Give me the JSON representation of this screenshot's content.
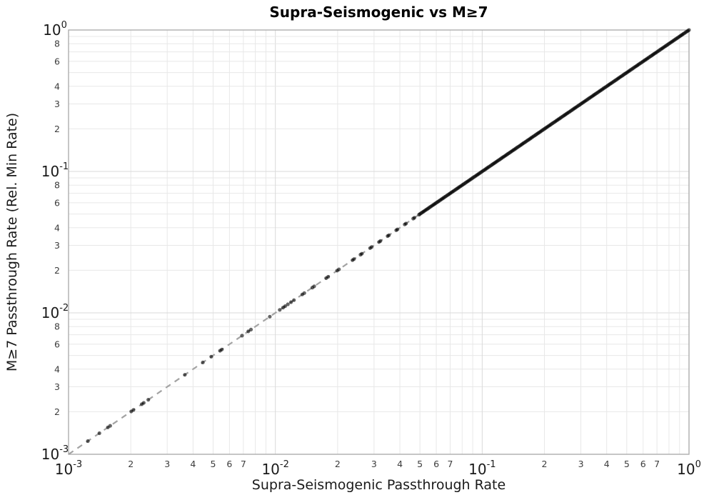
{
  "chart_data": {
    "type": "scatter",
    "title": "Supra-Seismogenic vs M≥7",
    "xlabel": "Supra-Seismogenic Passthrough Rate",
    "ylabel": "M≥7 Passthrough Rate (Rel. Min Rate)",
    "xscale": "log",
    "yscale": "log",
    "xlim": [
      0.001,
      1.0
    ],
    "ylim": [
      0.001,
      1.0
    ],
    "grid": true,
    "legend": "none",
    "x_decade_exponents": [
      -3,
      -2,
      -1,
      0
    ],
    "y_decade_exponents": [
      0,
      -1,
      -2,
      -3
    ],
    "x_minor_labeled_digits": [
      2,
      3,
      4,
      5,
      6,
      7
    ],
    "y_minor_labeled_digits": [
      8,
      6,
      4,
      3,
      2
    ],
    "relation": "all points lie on the identity line y = x",
    "reference_line": {
      "type": "y=x",
      "from": 0.001,
      "to": 1.0,
      "style": "dashed",
      "color": "#a3a3a3"
    },
    "marker": {
      "shape": "circle",
      "color": "#000000",
      "opacity": 0.6,
      "radius_px": 2.6
    },
    "points_sparse_x": [
      0.00124,
      0.00141,
      0.00155,
      0.00159,
      0.00201,
      0.00206,
      0.00226,
      0.00231,
      0.00243,
      0.00365,
      0.00446,
      0.0049,
      0.0054,
      0.00551,
      0.0069,
      0.0074,
      0.00762,
      0.0094,
      0.0105,
      0.0109,
      0.01115,
      0.0115,
      0.0119,
      0.0123,
      0.0135,
      0.0138,
      0.0151,
      0.0154,
      0.0176,
      0.018,
      0.0199,
      0.0203,
      0.0236,
      0.024,
      0.0258,
      0.0262,
      0.0287,
      0.0292,
      0.0317,
      0.0322,
      0.0349,
      0.0354,
      0.0384,
      0.0389,
      0.0422,
      0.0428,
      0.0464,
      0.047,
      0.0495
    ],
    "points_dense_x": {
      "from": 0.05,
      "to": 1.0,
      "count": 240,
      "spacing": "log"
    }
  },
  "colors": {
    "background": "#ffffff",
    "plot_border": "#a8a8a8",
    "grid_minor": "#e8e8e8",
    "grid_major": "#dadada",
    "tick_major": "#1a1a1a",
    "tick_minor": "#3c3c3c",
    "title": "#000000",
    "axis_title": "#1a1a1a"
  }
}
